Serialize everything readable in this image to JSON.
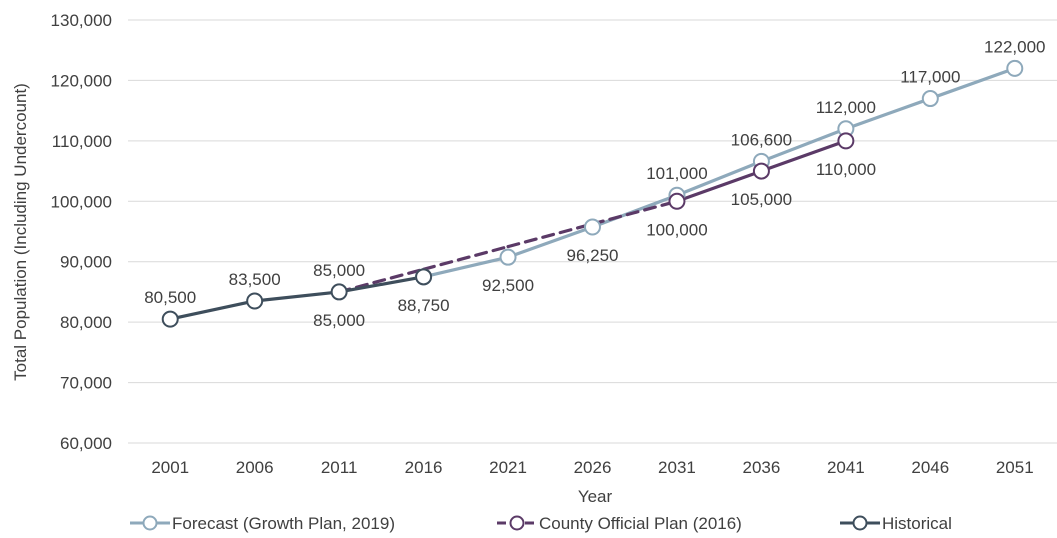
{
  "chart_data": {
    "type": "line",
    "title": "",
    "xlabel": "Year",
    "ylabel": "Total Population (Including Undercount)",
    "categories": [
      "2001",
      "2006",
      "2011",
      "2016",
      "2021",
      "2026",
      "2031",
      "2036",
      "2041",
      "2046",
      "2051"
    ],
    "y_ticks": [
      "60,000",
      "70,000",
      "80,000",
      "90,000",
      "100,000",
      "110,000",
      "120,000",
      "130,000"
    ],
    "ylim": [
      60000,
      130000
    ],
    "grid": true,
    "legend_position": "bottom",
    "series": [
      {
        "name": "Forecast (Growth Plan, 2019)",
        "color": "#8ea9bb",
        "points": [
          {
            "x": "2016",
            "y": 87500
          },
          {
            "x": "2021",
            "y": 90750
          },
          {
            "x": "2026",
            "y": 95750
          },
          {
            "x": "2031",
            "y": 101000
          },
          {
            "x": "2036",
            "y": 106600
          },
          {
            "x": "2041",
            "y": 112000
          },
          {
            "x": "2046",
            "y": 117000
          },
          {
            "x": "2051",
            "y": 122000
          }
        ]
      },
      {
        "name": "County Official Plan (2016)",
        "color": "#5b3a67",
        "points": [
          {
            "x": "2011",
            "y": 85000,
            "dashed": true
          },
          {
            "x": "2016",
            "y": 88750,
            "dashed": true
          },
          {
            "x": "2021",
            "y": 92500,
            "dashed": true
          },
          {
            "x": "2026",
            "y": 96250,
            "dashed": true
          },
          {
            "x": "2031",
            "y": 100000
          },
          {
            "x": "2036",
            "y": 105000
          },
          {
            "x": "2041",
            "y": 110000
          }
        ]
      },
      {
        "name": "Historical",
        "color": "#3e4e5c",
        "points": [
          {
            "x": "2001",
            "y": 80500
          },
          {
            "x": "2006",
            "y": 83500
          },
          {
            "x": "2011",
            "y": 85000
          },
          {
            "x": "2016",
            "y": 87500
          }
        ]
      }
    ],
    "data_labels": [
      {
        "text": "80,500",
        "x": "2001",
        "y": 80500,
        "pos": "above"
      },
      {
        "text": "83,500",
        "x": "2006",
        "y": 83500,
        "pos": "above"
      },
      {
        "text": "85,000",
        "x": "2011",
        "y": 85000,
        "pos": "above"
      },
      {
        "text": "85,000",
        "x": "2011",
        "y": 85000,
        "pos": "below"
      },
      {
        "text": "88,750",
        "x": "2016",
        "y": 87500,
        "pos": "below"
      },
      {
        "text": "92,500",
        "x": "2021",
        "y": 90750,
        "pos": "below"
      },
      {
        "text": "96,250",
        "x": "2026",
        "y": 95750,
        "pos": "below"
      },
      {
        "text": "101,000",
        "x": "2031",
        "y": 101000,
        "pos": "above"
      },
      {
        "text": "100,000",
        "x": "2031",
        "y": 100000,
        "pos": "below"
      },
      {
        "text": "106,600",
        "x": "2036",
        "y": 106600,
        "pos": "above"
      },
      {
        "text": "105,000",
        "x": "2036",
        "y": 105000,
        "pos": "below"
      },
      {
        "text": "112,000",
        "x": "2041",
        "y": 112000,
        "pos": "above"
      },
      {
        "text": "110,000",
        "x": "2041",
        "y": 110000,
        "pos": "below-right"
      },
      {
        "text": "117,000",
        "x": "2046",
        "y": 117000,
        "pos": "above"
      },
      {
        "text": "122,000",
        "x": "2051",
        "y": 122000,
        "pos": "above"
      }
    ]
  }
}
